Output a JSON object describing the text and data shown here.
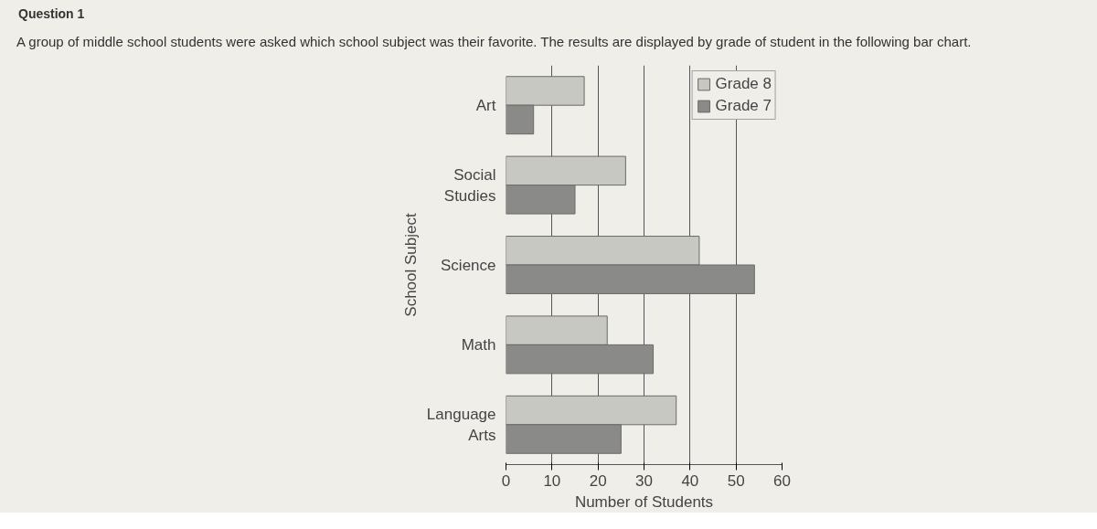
{
  "chart_data": {
    "type": "bar",
    "orientation": "horizontal",
    "title": "Question 1",
    "subtitle": "A group of middle school students were asked which school subject was their favorite. The results are displayed by grade of student in the following bar chart.",
    "xlabel": "Number of Students",
    "ylabel": "School Subject",
    "categories": [
      "Art",
      "Social Studies",
      "Science",
      "Math",
      "Language Arts"
    ],
    "series": [
      {
        "name": "Grade 8",
        "color": "#c8c8c2",
        "values": [
          17,
          26,
          42,
          22,
          37
        ]
      },
      {
        "name": "Grade 7",
        "color": "#8a8a88",
        "values": [
          6,
          15,
          54,
          32,
          25
        ]
      }
    ],
    "xlim": [
      0,
      60
    ],
    "xticks": [
      0,
      10,
      20,
      30,
      40,
      50,
      60
    ],
    "grid": "x",
    "legend": "top right"
  }
}
